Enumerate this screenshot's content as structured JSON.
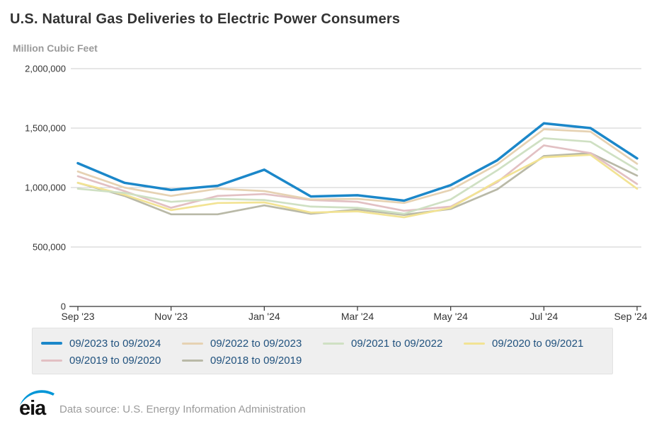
{
  "header": {
    "title": "U.S. Natural Gas Deliveries to Electric Power Consumers",
    "units_label": "Million Cubic Feet"
  },
  "chart_data": {
    "type": "line",
    "title": "U.S. Natural Gas Deliveries to Electric Power Consumers",
    "ylabel": "Million Cubic Feet",
    "xlabel": "",
    "x": [
      "Sep '23",
      "Oct '23",
      "Nov '23",
      "Dec '23",
      "Jan '24",
      "Feb '24",
      "Mar '24",
      "Apr '24",
      "May '24",
      "Jun '24",
      "Jul '24",
      "Aug '24",
      "Sep '24"
    ],
    "x_tick_labels": [
      "Sep '23",
      "Nov '23",
      "Jan '24",
      "Mar '24",
      "May '24",
      "Jul '24",
      "Sep '24"
    ],
    "y_ticks": [
      0,
      500000,
      1000000,
      1500000,
      2000000
    ],
    "y_tick_labels": [
      "0",
      "500,000",
      "1,000,000",
      "1,500,000",
      "2,000,000"
    ],
    "ylim": [
      0,
      2000000
    ],
    "grid": true,
    "legend_position": "bottom",
    "series": [
      {
        "name": "09/2023 to 09/2024",
        "color": "#1b87c9",
        "stroke_width": 3.5,
        "values": [
          1205000,
          1040000,
          980000,
          1015000,
          1150000,
          925000,
          935000,
          890000,
          1020000,
          1230000,
          1540000,
          1500000,
          1245000
        ]
      },
      {
        "name": "09/2022 to 09/2023",
        "color": "#e6d2b3",
        "stroke_width": 2.7,
        "values": [
          1135000,
          1000000,
          930000,
          990000,
          970000,
          900000,
          905000,
          870000,
          980000,
          1195000,
          1490000,
          1470000,
          1200000
        ]
      },
      {
        "name": "09/2021 to 09/2022",
        "color": "#cfe0c3",
        "stroke_width": 2.7,
        "values": [
          990000,
          955000,
          880000,
          905000,
          895000,
          840000,
          830000,
          780000,
          900000,
          1145000,
          1415000,
          1385000,
          1150000
        ]
      },
      {
        "name": "09/2020 to 09/2021",
        "color": "#f2e394",
        "stroke_width": 2.7,
        "values": [
          1040000,
          940000,
          810000,
          870000,
          875000,
          790000,
          800000,
          750000,
          830000,
          1055000,
          1255000,
          1275000,
          990000
        ]
      },
      {
        "name": "09/2019 to 09/2020",
        "color": "#e2c0c3",
        "stroke_width": 2.7,
        "values": [
          1095000,
          970000,
          830000,
          930000,
          945000,
          895000,
          880000,
          805000,
          840000,
          1045000,
          1355000,
          1290000,
          1030000
        ]
      },
      {
        "name": "09/2018 to 09/2019",
        "color": "#b9b9a7",
        "stroke_width": 2.7,
        "values": [
          1040000,
          930000,
          775000,
          775000,
          850000,
          780000,
          815000,
          770000,
          820000,
          985000,
          1265000,
          1290000,
          1100000
        ]
      }
    ]
  },
  "footer": {
    "logo_text": "eia",
    "source_text": "Data source: U.S. Energy Information Administration"
  },
  "colors": {
    "accent_blue": "#1b87c9",
    "logo_blue": "#0096d7",
    "grid": "#cccccc",
    "axis": "#333333",
    "tick_text": "#333333",
    "legend_text": "#21527e",
    "legend_bg": "#efefef",
    "muted_text": "#9b9b9b"
  }
}
